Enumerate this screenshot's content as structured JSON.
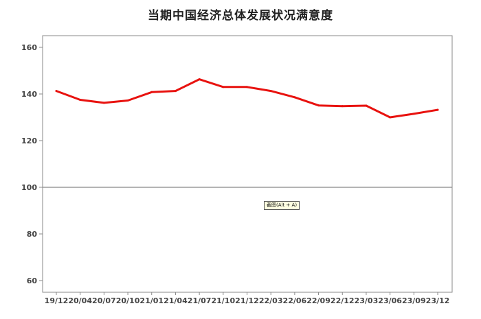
{
  "chart_data": {
    "type": "line",
    "title": "当期中国经济总体发展状况满意度",
    "xlabel": "",
    "ylabel": "",
    "categories": [
      "19/12",
      "20/04",
      "20/07",
      "20/10",
      "21/01",
      "21/04",
      "21/07",
      "21/10",
      "21/12",
      "22/03",
      "22/06",
      "22/09",
      "22/12",
      "23/03",
      "23/06",
      "23/09",
      "23/12"
    ],
    "series": [
      {
        "values": [
          141.3,
          137.5,
          136.2,
          137.2,
          140.8,
          141.3,
          146.3,
          143.0,
          143.0,
          141.3,
          138.6,
          135.1,
          134.8,
          135.0,
          130.0,
          131.5,
          133.2
        ]
      }
    ],
    "ylim": [
      55,
      165
    ],
    "yticks": [
      60,
      80,
      100,
      120,
      140,
      160
    ],
    "reference_line": 100,
    "grid": false,
    "legend": "none",
    "colors": {
      "line": "#e8120f",
      "reference": "#888888",
      "frame": "#888888"
    }
  },
  "tooltip": {
    "text": "截图(Alt + A)"
  }
}
